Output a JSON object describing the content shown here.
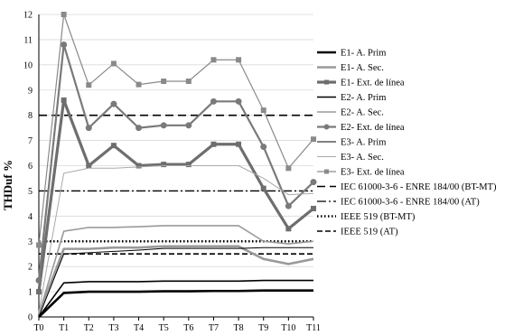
{
  "chart_data": {
    "type": "line",
    "ylabel": "THDuf %",
    "xlabel": "",
    "title": "",
    "categories": [
      "T0",
      "T1",
      "T2",
      "T3",
      "T4",
      "T5",
      "T6",
      "T7",
      "T8",
      "T9",
      "T10",
      "T11"
    ],
    "ylim": [
      0,
      12
    ],
    "yticks": [
      0,
      1,
      2,
      3,
      4,
      5,
      6,
      7,
      8,
      9,
      10,
      11,
      12
    ],
    "grid": "horizontal",
    "legend_position": "right",
    "series": [
      {
        "name": "E1- A. Prim",
        "values": [
          0,
          0.95,
          1.0,
          1.0,
          1.0,
          1.02,
          1.02,
          1.03,
          1.03,
          1.05,
          1.05,
          1.05
        ],
        "color": "#000000",
        "width": 2.6,
        "dash": "",
        "marker": "none"
      },
      {
        "name": "E1- A. Sec.",
        "values": [
          0.1,
          2.7,
          2.7,
          2.75,
          2.75,
          2.8,
          2.8,
          2.8,
          2.8,
          2.3,
          2.1,
          2.3
        ],
        "color": "#9a9a9a",
        "width": 2.6,
        "dash": "",
        "marker": "none"
      },
      {
        "name": "E1- Ext. de línea",
        "values": [
          1.0,
          8.6,
          6.0,
          6.8,
          6.0,
          6.05,
          6.05,
          6.85,
          6.85,
          5.1,
          3.5,
          4.3
        ],
        "color": "#6e6e6e",
        "width": 3.2,
        "dash": "",
        "marker": "square"
      },
      {
        "name": "E2- A. Prim",
        "values": [
          0,
          1.35,
          1.4,
          1.4,
          1.4,
          1.42,
          1.42,
          1.42,
          1.42,
          1.45,
          1.45,
          1.45
        ],
        "color": "#000000",
        "width": 1.6,
        "dash": "",
        "marker": "none"
      },
      {
        "name": "E2- A. Sec.",
        "values": [
          0.1,
          3.4,
          3.55,
          3.55,
          3.58,
          3.62,
          3.62,
          3.62,
          3.62,
          3.0,
          2.9,
          3.0
        ],
        "color": "#9a9a9a",
        "width": 1.6,
        "dash": "",
        "marker": "none"
      },
      {
        "name": "E2- Ext. de línea",
        "values": [
          1.45,
          10.8,
          7.5,
          8.45,
          7.5,
          7.6,
          7.6,
          8.55,
          8.55,
          6.75,
          4.4,
          5.35
        ],
        "color": "#7a7a7a",
        "width": 2.2,
        "dash": "",
        "marker": "circle"
      },
      {
        "name": "E3- A. Prim",
        "values": [
          0,
          2.5,
          2.55,
          2.6,
          2.65,
          2.72,
          2.72,
          2.72,
          2.72,
          2.75,
          2.75,
          2.75
        ],
        "color": "#000000",
        "width": 1.0,
        "dash": "",
        "marker": "none"
      },
      {
        "name": "E3- A. Sec.",
        "values": [
          0.2,
          5.7,
          5.9,
          5.9,
          5.95,
          6.0,
          6.0,
          6.0,
          6.0,
          5.5,
          4.85,
          4.9
        ],
        "color": "#aaaaaa",
        "width": 1.0,
        "dash": "",
        "marker": "none"
      },
      {
        "name": "E3- Ext. de línea",
        "values": [
          2.85,
          12.0,
          9.2,
          10.05,
          9.22,
          9.35,
          9.35,
          10.2,
          10.2,
          8.2,
          5.9,
          7.05
        ],
        "color": "#8a8a8a",
        "width": 1.2,
        "dash": "",
        "marker": "square"
      },
      {
        "name": "IEC 61000-3-6 - ENRE 184/00 (BT-MT)",
        "values": [
          8,
          8,
          8,
          8,
          8,
          8,
          8,
          8,
          8,
          8,
          8,
          8
        ],
        "color": "#000000",
        "width": 1.6,
        "dash": "9,5",
        "marker": "none",
        "reference": true
      },
      {
        "name": "IEC 61000-3-6 - ENRE 184/00 (AT)",
        "values": [
          5,
          5,
          5,
          5,
          5,
          5,
          5,
          5,
          5,
          5,
          5,
          5
        ],
        "color": "#000000",
        "width": 1.3,
        "dash": "10,3,2,3",
        "marker": "none",
        "reference": true
      },
      {
        "name": "IEEE 519 (BT-MT)",
        "values": [
          3,
          3,
          3,
          3,
          3,
          3,
          3,
          3,
          3,
          3,
          3,
          3
        ],
        "color": "#000000",
        "width": 2.4,
        "dash": "1.5,2.5",
        "marker": "none",
        "reference": true
      },
      {
        "name": "IEEE 519 (AT)",
        "values": [
          2.5,
          2.5,
          2.5,
          2.5,
          2.5,
          2.5,
          2.5,
          2.5,
          2.5,
          2.5,
          2.5,
          2.5
        ],
        "color": "#000000",
        "width": 1.6,
        "dash": "6,3",
        "marker": "none",
        "reference": true
      }
    ]
  }
}
